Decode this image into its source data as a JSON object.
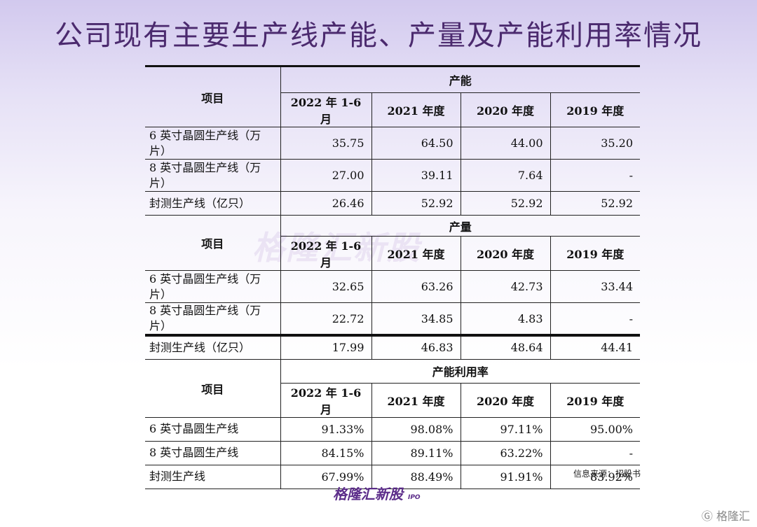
{
  "title": "公司现有主要生产线产能、产量及产能利用率情况",
  "item_header": "项目",
  "periods": [
    "2022 年 1-6 月",
    "2021 年度",
    "2020 年度",
    "2019 年度"
  ],
  "sections": [
    {
      "name": "产能",
      "rows": [
        {
          "item": "6 英寸晶圆生产线（万片）",
          "values": [
            "35.75",
            "64.50",
            "44.00",
            "35.20"
          ]
        },
        {
          "item": "8 英寸晶圆生产线（万片）",
          "values": [
            "27.00",
            "39.11",
            "7.64",
            "-"
          ]
        },
        {
          "item": "封测生产线（亿只）",
          "values": [
            "26.46",
            "52.92",
            "52.92",
            "52.92"
          ]
        }
      ]
    },
    {
      "name": "产量",
      "rows": [
        {
          "item": "6 英寸晶圆生产线（万片）",
          "values": [
            "32.65",
            "63.26",
            "42.73",
            "33.44"
          ]
        },
        {
          "item": "8 英寸晶圆生产线（万片）",
          "values": [
            "22.72",
            "34.85",
            "4.83",
            "-"
          ]
        },
        {
          "item": "封测生产线（亿只）",
          "values": [
            "17.99",
            "46.83",
            "48.64",
            "44.41"
          ]
        }
      ]
    },
    {
      "name": "产能利用率",
      "rows": [
        {
          "item": "6 英寸晶圆生产线",
          "values": [
            "91.33%",
            "98.08%",
            "97.11%",
            "95.00%"
          ]
        },
        {
          "item": "8 英寸晶圆生产线",
          "values": [
            "84.15%",
            "89.11%",
            "63.22%",
            "-"
          ]
        },
        {
          "item": "封测生产线",
          "values": [
            "67.99%",
            "88.49%",
            "91.91%",
            "83.92%"
          ]
        }
      ]
    }
  ],
  "source": "信息来源：招股书",
  "watermark": "格隆汇新股",
  "logo": {
    "main": "格隆汇新股",
    "sub": "IPO"
  },
  "corner_logo": "格隆汇"
}
